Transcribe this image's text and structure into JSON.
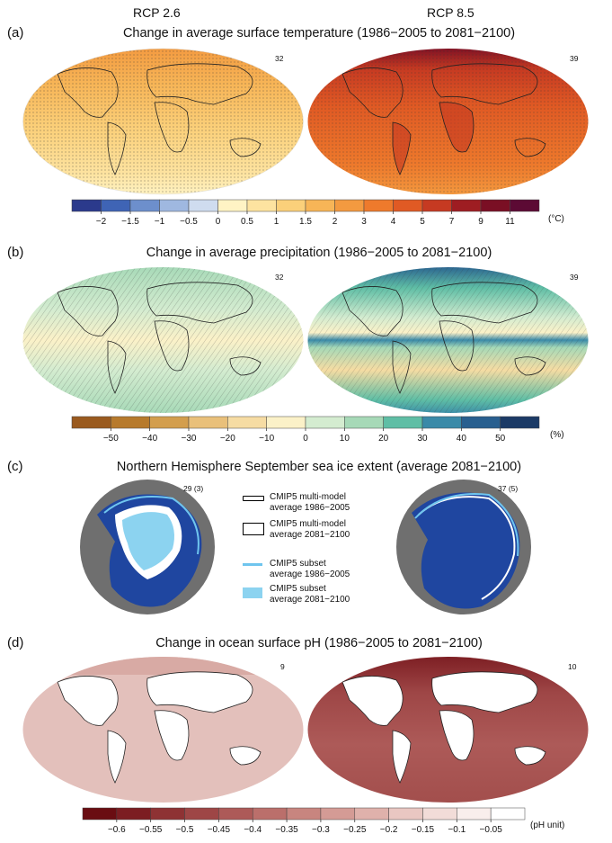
{
  "columns": {
    "left": "RCP 2.6",
    "right": "RCP 8.5"
  },
  "panels": {
    "a": {
      "letter": "(a)",
      "title": "Change in average surface temperature (1986−2005 to 2081−2100)",
      "count_left": "32",
      "count_right": "39",
      "unit": "(°C)",
      "ticks": [
        "−2",
        "−1.5",
        "−1",
        "−0.5",
        "0",
        "0.5",
        "1",
        "1.5",
        "2",
        "3",
        "4",
        "5",
        "7",
        "9",
        "11"
      ],
      "colors": [
        "#2b3a8c",
        "#3f64b5",
        "#6d8fcc",
        "#9fb8e0",
        "#cfdcef",
        "#fff3c4",
        "#fde3a0",
        "#fbd07a",
        "#f7b557",
        "#f39a40",
        "#ee7a2c",
        "#e05a24",
        "#c63a22",
        "#9e1d22",
        "#7a0f24",
        "#5c0a34"
      ]
    },
    "b": {
      "letter": "(b)",
      "title": "Change in average precipitation (1986−2005 to 2081−2100)",
      "count_left": "32",
      "count_right": "39",
      "unit": "(%)",
      "ticks": [
        "−50",
        "−40",
        "−30",
        "−20",
        "−10",
        "0",
        "10",
        "20",
        "30",
        "40",
        "50"
      ],
      "colors": [
        "#9a5a1e",
        "#b77a2c",
        "#d39e4d",
        "#e9c07a",
        "#f6dca3",
        "#fbf1c8",
        "#d4ecd0",
        "#a6d9b7",
        "#5fbea5",
        "#3a8aa8",
        "#285f8f",
        "#1b3a66"
      ]
    },
    "c": {
      "letter": "(c)",
      "title": "Northern Hemisphere September sea ice extent (average 2081−2100)",
      "count_left": "29 (3)",
      "count_right": "37 (5)",
      "legend": [
        {
          "text": "CMIP5 multi-model\naverage 1986−2005"
        },
        {
          "text": "CMIP5 multi-model\naverage 2081−2100"
        },
        {
          "text": "CMIP5 subset\naverage 1986−2005"
        },
        {
          "text": "CMIP5 subset\naverage 2081−2100"
        }
      ]
    },
    "d": {
      "letter": "(d)",
      "title": "Change in ocean surface pH (1986−2005 to 2081−2100)",
      "count_left": "9",
      "count_right": "10",
      "unit": "(pH unit)",
      "ticks": [
        "−0.6",
        "−0.55",
        "−0.5",
        "−0.45",
        "−0.4",
        "−0.35",
        "−0.3",
        "−0.25",
        "−0.2",
        "−0.15",
        "−0.1",
        "−0.05"
      ],
      "colors": [
        "#6a0d12",
        "#7c1d22",
        "#8e3234",
        "#9e4646",
        "#ad5a58",
        "#bb6f6b",
        "#c8857f",
        "#d49b95",
        "#dfb1ab",
        "#e9c7c2",
        "#f2dcd8",
        "#f9eeec",
        "#ffffff"
      ]
    }
  }
}
